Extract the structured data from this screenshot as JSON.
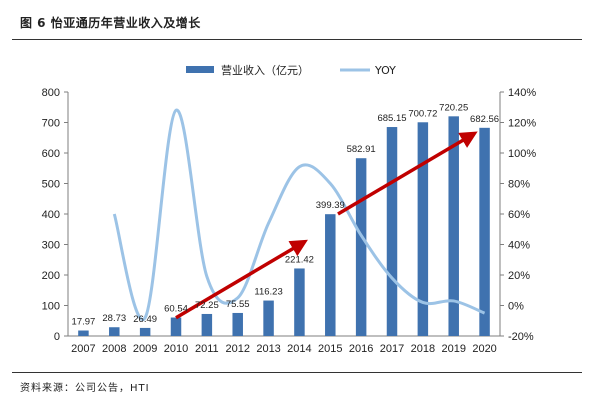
{
  "figure_title": "图 6 怡亚通历年营业收入及增长",
  "source_note": "资料来源：公司公告，HTI",
  "colors": {
    "bar": "#3f72af",
    "yoy_line": "#9cc3e6",
    "trend_arrow": "#c00000",
    "axis": "#7f7f7f"
  },
  "chart_data": {
    "type": "bar",
    "categories": [
      "2007",
      "2008",
      "2009",
      "2010",
      "2011",
      "2012",
      "2013",
      "2014",
      "2015",
      "2016",
      "2017",
      "2018",
      "2019",
      "2020"
    ],
    "series": [
      {
        "name": "营业收入（亿元）",
        "type": "bar",
        "axis": "left",
        "values": [
          17.97,
          28.73,
          26.49,
          60.54,
          72.25,
          75.55,
          116.23,
          221.42,
          399.39,
          582.91,
          685.15,
          700.72,
          720.25,
          682.56
        ],
        "labels": [
          "17.97",
          "28.73",
          "26.49",
          "60.54",
          "72.25",
          "75.55",
          "116.23",
          "221.42",
          "399.39",
          "582.91",
          "685.15",
          "700.72",
          "720.25",
          "682.56"
        ]
      },
      {
        "name": "YOY",
        "type": "line",
        "axis": "right",
        "values": [
          null,
          60,
          -8,
          128,
          19,
          5,
          54,
          91,
          80,
          46,
          18,
          2,
          3,
          -5
        ]
      }
    ],
    "left_axis": {
      "min": 0,
      "max": 800,
      "ticks": [
        "0",
        "100",
        "200",
        "300",
        "400",
        "500",
        "600",
        "700",
        "800"
      ]
    },
    "right_axis": {
      "min": -20,
      "max": 140,
      "ticks": [
        "-20%",
        "0%",
        "20%",
        "40%",
        "60%",
        "80%",
        "100%",
        "120%",
        "140%"
      ]
    },
    "legend_position": "top",
    "grid": false
  }
}
